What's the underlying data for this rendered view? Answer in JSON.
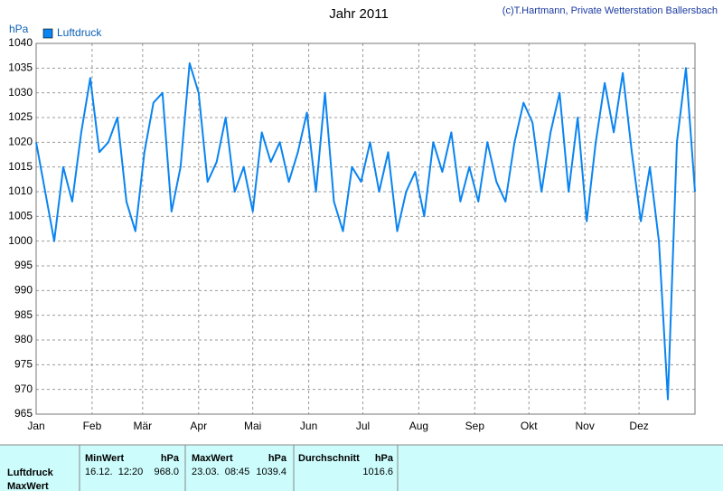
{
  "chart_data": {
    "type": "line",
    "title": "Jahr 2011",
    "credit": "(c)T.Hartmann, Private Wetterstation Ballersbach",
    "y_label": "hPa",
    "legend": "top-left",
    "grid": true,
    "xlim": [
      0,
      365
    ],
    "xticks": [
      {
        "value": 0,
        "label": "Jan"
      },
      {
        "value": 31,
        "label": "Feb"
      },
      {
        "value": 59,
        "label": "Mär"
      },
      {
        "value": 90,
        "label": "Apr"
      },
      {
        "value": 120,
        "label": "Mai"
      },
      {
        "value": 151,
        "label": "Jun"
      },
      {
        "value": 181,
        "label": "Jul"
      },
      {
        "value": 212,
        "label": "Aug"
      },
      {
        "value": 243,
        "label": "Sep"
      },
      {
        "value": 273,
        "label": "Okt"
      },
      {
        "value": 304,
        "label": "Nov"
      },
      {
        "value": 334,
        "label": "Dez"
      }
    ],
    "ylim": [
      965,
      1040
    ],
    "yticks": [
      965,
      970,
      975,
      980,
      985,
      990,
      995,
      1000,
      1005,
      1010,
      1015,
      1020,
      1025,
      1030,
      1035,
      1040
    ],
    "series": [
      {
        "name": "Luftdruck",
        "color": "#0a84f0",
        "x": [
          0,
          5,
          10,
          15,
          20,
          25,
          30,
          35,
          40,
          45,
          50,
          55,
          60,
          65,
          70,
          75,
          80,
          85,
          90,
          95,
          100,
          105,
          110,
          115,
          120,
          125,
          130,
          135,
          140,
          145,
          150,
          155,
          160,
          165,
          170,
          175,
          180,
          185,
          190,
          195,
          200,
          205,
          210,
          215,
          220,
          225,
          230,
          235,
          240,
          245,
          250,
          255,
          260,
          265,
          270,
          275,
          280,
          285,
          290,
          295,
          300,
          305,
          310,
          315,
          320,
          325,
          330,
          335,
          340,
          345,
          350,
          355,
          360,
          365
        ],
        "values": [
          1020,
          1010,
          1000,
          1015,
          1008,
          1022,
          1033,
          1018,
          1020,
          1025,
          1008,
          1002,
          1018,
          1028,
          1030,
          1006,
          1015,
          1036,
          1030,
          1012,
          1016,
          1025,
          1010,
          1015,
          1006,
          1022,
          1016,
          1020,
          1012,
          1018,
          1026,
          1010,
          1030,
          1008,
          1002,
          1015,
          1012,
          1020,
          1010,
          1018,
          1002,
          1010,
          1014,
          1005,
          1020,
          1014,
          1022,
          1008,
          1015,
          1008,
          1020,
          1012,
          1008,
          1020,
          1028,
          1024,
          1010,
          1022,
          1030,
          1010,
          1025,
          1004,
          1020,
          1032,
          1022,
          1034,
          1018,
          1004,
          1015,
          1000,
          968,
          1020,
          1035,
          1010
        ]
      }
    ]
  },
  "table": {
    "headers": [
      "MinWert",
      "hPa",
      "MaxWert",
      "hPa",
      "Durchschnitt",
      "hPa"
    ],
    "rows": [
      [
        "Luftdruck",
        "16.12.  12:20",
        "968.0",
        "23.03.  08:45",
        "1039.4",
        "1016.6"
      ],
      [
        "MaxWert"
      ]
    ]
  }
}
